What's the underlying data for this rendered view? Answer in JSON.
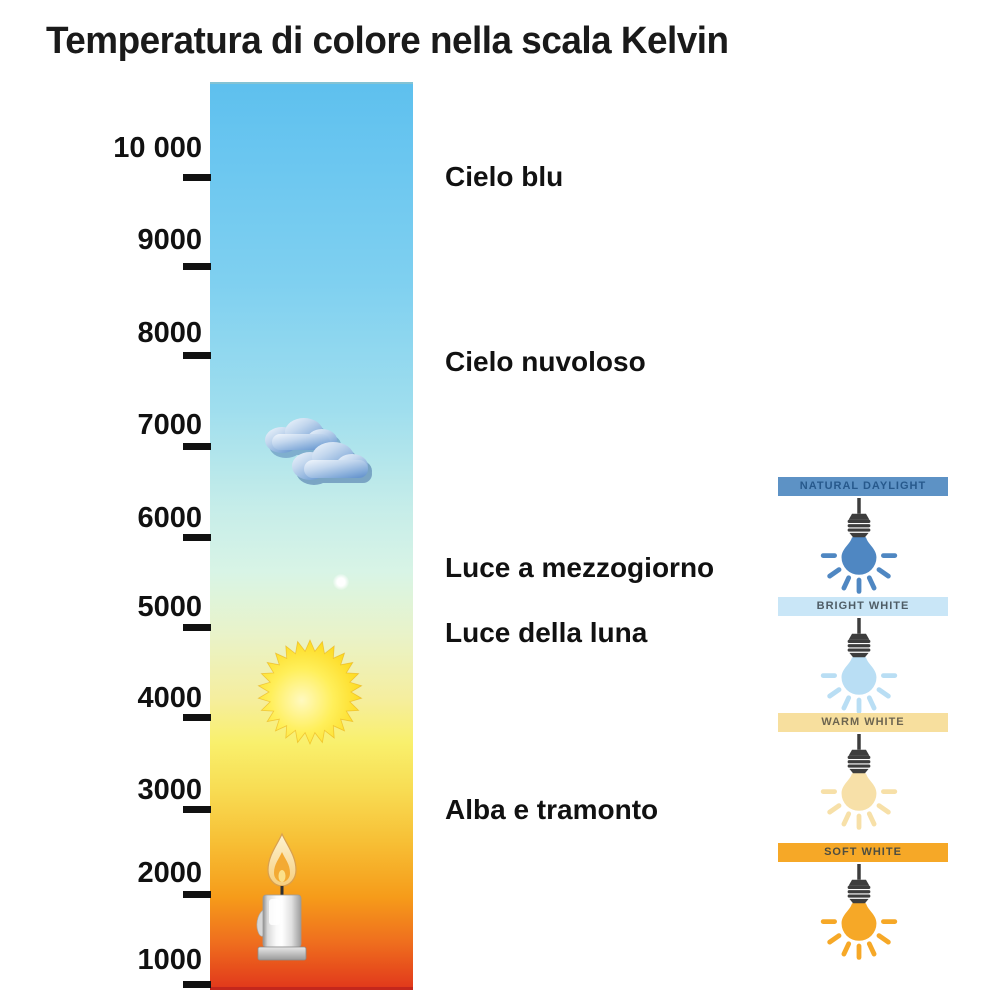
{
  "title": "Temperatura di colore nella scala Kelvin",
  "scale": {
    "labels": [
      "10 000",
      "9000",
      "8000",
      "7000",
      "6000",
      "5000",
      "4000",
      "3000",
      "2000",
      "1000"
    ]
  },
  "annotations": [
    {
      "label": "Cielo blu"
    },
    {
      "label": "Cielo nuvoloso"
    },
    {
      "label": "Luce a mezzogiorno"
    },
    {
      "label": "Luce della luna"
    },
    {
      "label": "Alba e tramonto"
    }
  ],
  "gradient_bar": {
    "stops": [
      {
        "color": "#5ec0ee",
        "pct": 0
      },
      {
        "color": "#6ac6f0",
        "pct": 8
      },
      {
        "color": "#7fd0f0",
        "pct": 22
      },
      {
        "color": "#9fdeee",
        "pct": 36
      },
      {
        "color": "#c6ede9",
        "pct": 47
      },
      {
        "color": "#d8f4e6",
        "pct": 54
      },
      {
        "color": "#e9f3c9",
        "pct": 61
      },
      {
        "color": "#f5ee9f",
        "pct": 68
      },
      {
        "color": "#f9f06c",
        "pct": 73
      },
      {
        "color": "#f8dd54",
        "pct": 78
      },
      {
        "color": "#f7bf35",
        "pct": 84
      },
      {
        "color": "#f69c1a",
        "pct": 90
      },
      {
        "color": "#ef6f1e",
        "pct": 95
      },
      {
        "color": "#e23a1b",
        "pct": 100
      }
    ]
  },
  "bulb_panel": {
    "items": [
      {
        "label": "NATURAL DAYLIGHT",
        "banner_color": "#5d92c5",
        "text_color": "#27598c",
        "bulb_color": "#4f87c2"
      },
      {
        "label": "BRIGHT WHITE",
        "banner_color": "#c9e6f7",
        "text_color": "#4f5d66",
        "bulb_color": "#b9def4"
      },
      {
        "label": "WARM WHITE",
        "banner_color": "#f7df9e",
        "text_color": "#6d6550",
        "bulb_color": "#f7e0a8"
      },
      {
        "label": "SOFT WHITE",
        "banner_color": "#f6a827",
        "text_color": "#4d4d40",
        "bulb_color": "#f6a827"
      }
    ]
  },
  "icons": {
    "clouds": "clouds-icon",
    "sun": "sun-icon",
    "moon": "moon-icon",
    "candle": "candle-icon"
  }
}
